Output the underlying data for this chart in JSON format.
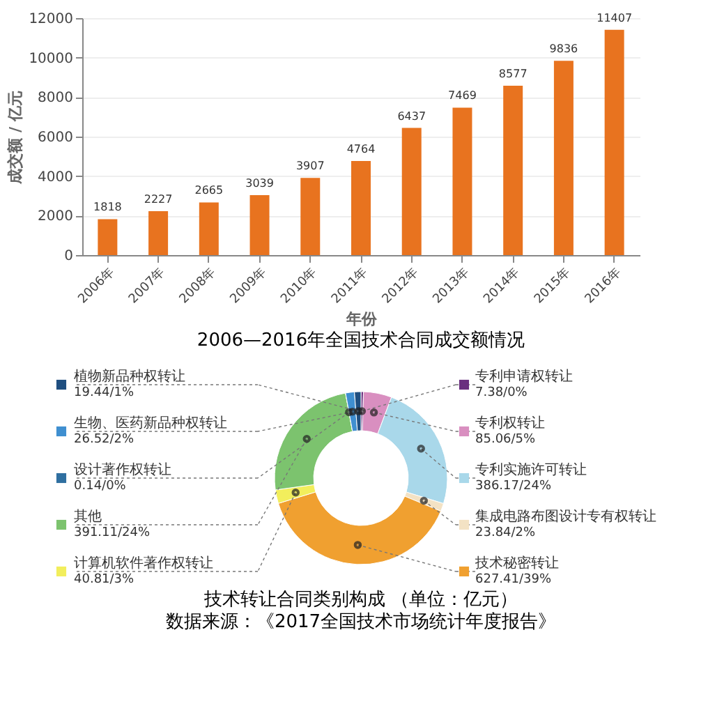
{
  "chart_data": [
    {
      "type": "bar",
      "title": "2006—2016年全国技术合同成交额情况",
      "xlabel": "年份",
      "ylabel": "成交额 / 亿元",
      "categories": [
        "2006年",
        "2007年",
        "2008年",
        "2009年",
        "2010年",
        "2011年",
        "2012年",
        "2013年",
        "2014年",
        "2015年",
        "2016年"
      ],
      "values": [
        1818,
        2227,
        2665,
        3039,
        3907,
        4764,
        6437,
        7469,
        8577,
        9836,
        11407
      ],
      "color": "#e8731f",
      "ylim": [
        0,
        12000
      ],
      "yticks": [
        0,
        2000,
        4000,
        6000,
        8000,
        10000,
        12000
      ],
      "grid": "y",
      "data_labels": true
    },
    {
      "type": "donut",
      "title": "技术转让合同类别构成 （单位：亿元）",
      "annotations": [
        "数据来源：《2017全国技术市场统计年度报告》"
      ],
      "categories": [
        "专利申请权转让",
        "专利权转让",
        "专利实施许可转让",
        "集成电路布图设计专有权转让",
        "技术秘密转让",
        "计算机软件著作权转让",
        "其他",
        "设计著作权转让",
        "生物、医药新品种权转让",
        "植物新品种权转让"
      ],
      "values": [
        7.38,
        85.06,
        386.17,
        23.84,
        627.41,
        40.81,
        391.11,
        0.14,
        26.52,
        19.44
      ],
      "value_labels": [
        "7.38/0%",
        "85.06/5%",
        "386.17/24%",
        "23.84/2%",
        "627.41/39%",
        "40.81/3%",
        "391.11/24%",
        "0.14/0%",
        "26.52/2%",
        "19.44/1%"
      ],
      "colors": [
        "#6a2f7f",
        "#d98fc0",
        "#a9d8ea",
        "#f3e2c4",
        "#f0a030",
        "#f2ee5c",
        "#7cc36e",
        "#2f6fa0",
        "#3f8fd0",
        "#1f4f80"
      ],
      "legend": "left"
    }
  ]
}
